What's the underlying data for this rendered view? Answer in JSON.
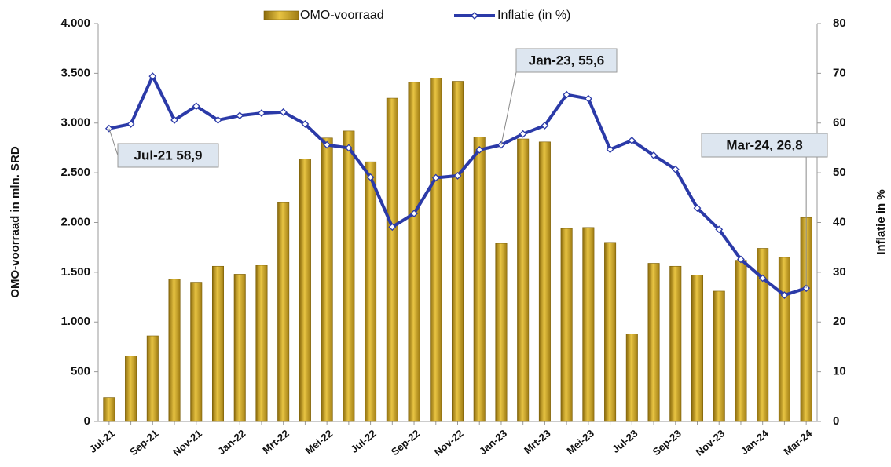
{
  "chart_data": {
    "type": "bar_line",
    "categories": [
      "Jul-21",
      null,
      "Sep-21",
      null,
      "Nov-21",
      null,
      "Jan-22",
      null,
      "Mrt-22",
      null,
      "Mei-22",
      null,
      "Jul-22",
      null,
      "Sep-22",
      null,
      "Nov-22",
      null,
      "Jan-23",
      null,
      "Mrt-23",
      null,
      "Mei-23",
      null,
      "Jul-23",
      null,
      "Sep-23",
      null,
      "Nov-23",
      null,
      "Jan-24",
      null,
      "Mar-24"
    ],
    "series": [
      {
        "name": "OMO-voorraad",
        "type": "bar",
        "color": "#c9a227",
        "values": [
          240,
          660,
          860,
          1430,
          1400,
          1560,
          1480,
          1570,
          2200,
          2640,
          2850,
          2920,
          2610,
          3250,
          3410,
          3450,
          3420,
          2860,
          1790,
          2840,
          2810,
          1940,
          1950,
          1800,
          880,
          1590,
          1560,
          1470,
          1310,
          1620,
          1740,
          1650,
          2050
        ]
      },
      {
        "name": "Inflatie (in %)",
        "type": "line",
        "axis": "y2",
        "color": "#2b3aa8",
        "values": [
          58.9,
          59.8,
          69.4,
          60.6,
          63.4,
          60.6,
          61.5,
          62.0,
          62.2,
          59.8,
          55.6,
          55.0,
          49.1,
          39.1,
          41.8,
          49.0,
          49.4,
          54.6,
          55.6,
          57.8,
          59.5,
          65.7,
          64.9,
          54.7,
          56.5,
          53.5,
          50.7,
          42.9,
          38.6,
          32.6,
          28.8,
          25.4,
          26.8
        ]
      }
    ],
    "y_label": "OMO-voorraad in mln. SRD",
    "y2_label": "Inflatie in %",
    "ylim": [
      0,
      4000
    ],
    "yticks": [
      0,
      {
        "value": 500,
        "label": "500"
      },
      {
        "value": 1000,
        "label": "1.000"
      },
      {
        "value": 1500,
        "label": "1.500"
      },
      {
        "value": 2000,
        "label": "2.000"
      },
      {
        "value": 2500,
        "label": "2.500"
      },
      {
        "value": 3000,
        "label": "3.000"
      },
      {
        "value": 3500,
        "label": "3.500"
      },
      {
        "value": 4000,
        "label": "4.000"
      }
    ],
    "y2lim": [
      0,
      80
    ],
    "y2ticks": [
      0,
      10,
      20,
      30,
      40,
      50,
      60,
      70,
      80
    ],
    "annotations": [
      "Jul-21  58,9",
      "Jan-23,  55,6",
      "Mar-24, 26,8"
    ],
    "legend": "top"
  }
}
